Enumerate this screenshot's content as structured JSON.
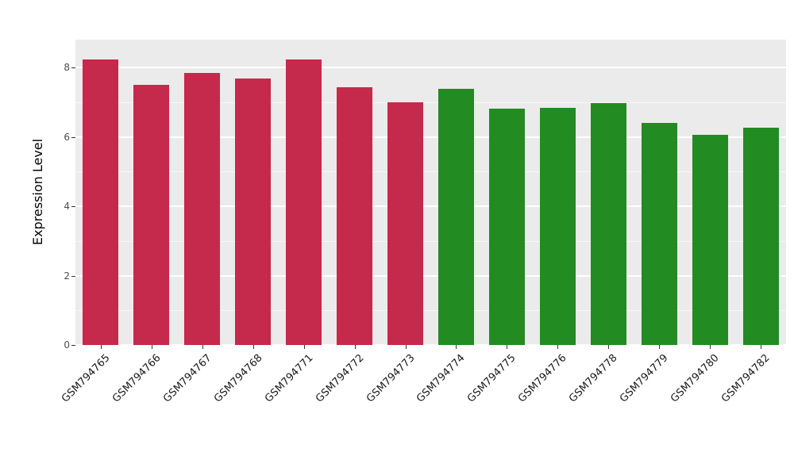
{
  "chart_data": {
    "type": "bar",
    "title": "",
    "ylabel": "Expression Level",
    "xlabel": "",
    "ylim": [
      0,
      8.8
    ],
    "yticks": [
      "0",
      "2",
      "4",
      "6",
      "8"
    ],
    "ytick_values": [
      0,
      2,
      4,
      6,
      8
    ],
    "minor_tick_values": [
      1,
      3,
      5,
      7
    ],
    "grid": "on",
    "legend": "none",
    "panel_background": "#EBEBEB",
    "categories": [
      "GSM794765",
      "GSM794766",
      "GSM794767",
      "GSM794768",
      "GSM794771",
      "GSM794772",
      "GSM794773",
      "GSM794774",
      "GSM794775",
      "GSM794776",
      "GSM794778",
      "GSM794779",
      "GSM794780",
      "GSM794782"
    ],
    "values": [
      8.22,
      7.5,
      7.85,
      7.68,
      8.22,
      7.43,
      7.0,
      7.38,
      6.82,
      6.83,
      6.97,
      6.4,
      6.05,
      6.27
    ],
    "bar_colors": [
      "#C5294B",
      "#C5294B",
      "#C5294B",
      "#C5294B",
      "#C5294B",
      "#C5294B",
      "#C5294B",
      "#228B22",
      "#228B22",
      "#228B22",
      "#228B22",
      "#228B22",
      "#228B22",
      "#228B22"
    ],
    "palette": {
      "group1": "#C5294B",
      "group2": "#228B22"
    }
  }
}
